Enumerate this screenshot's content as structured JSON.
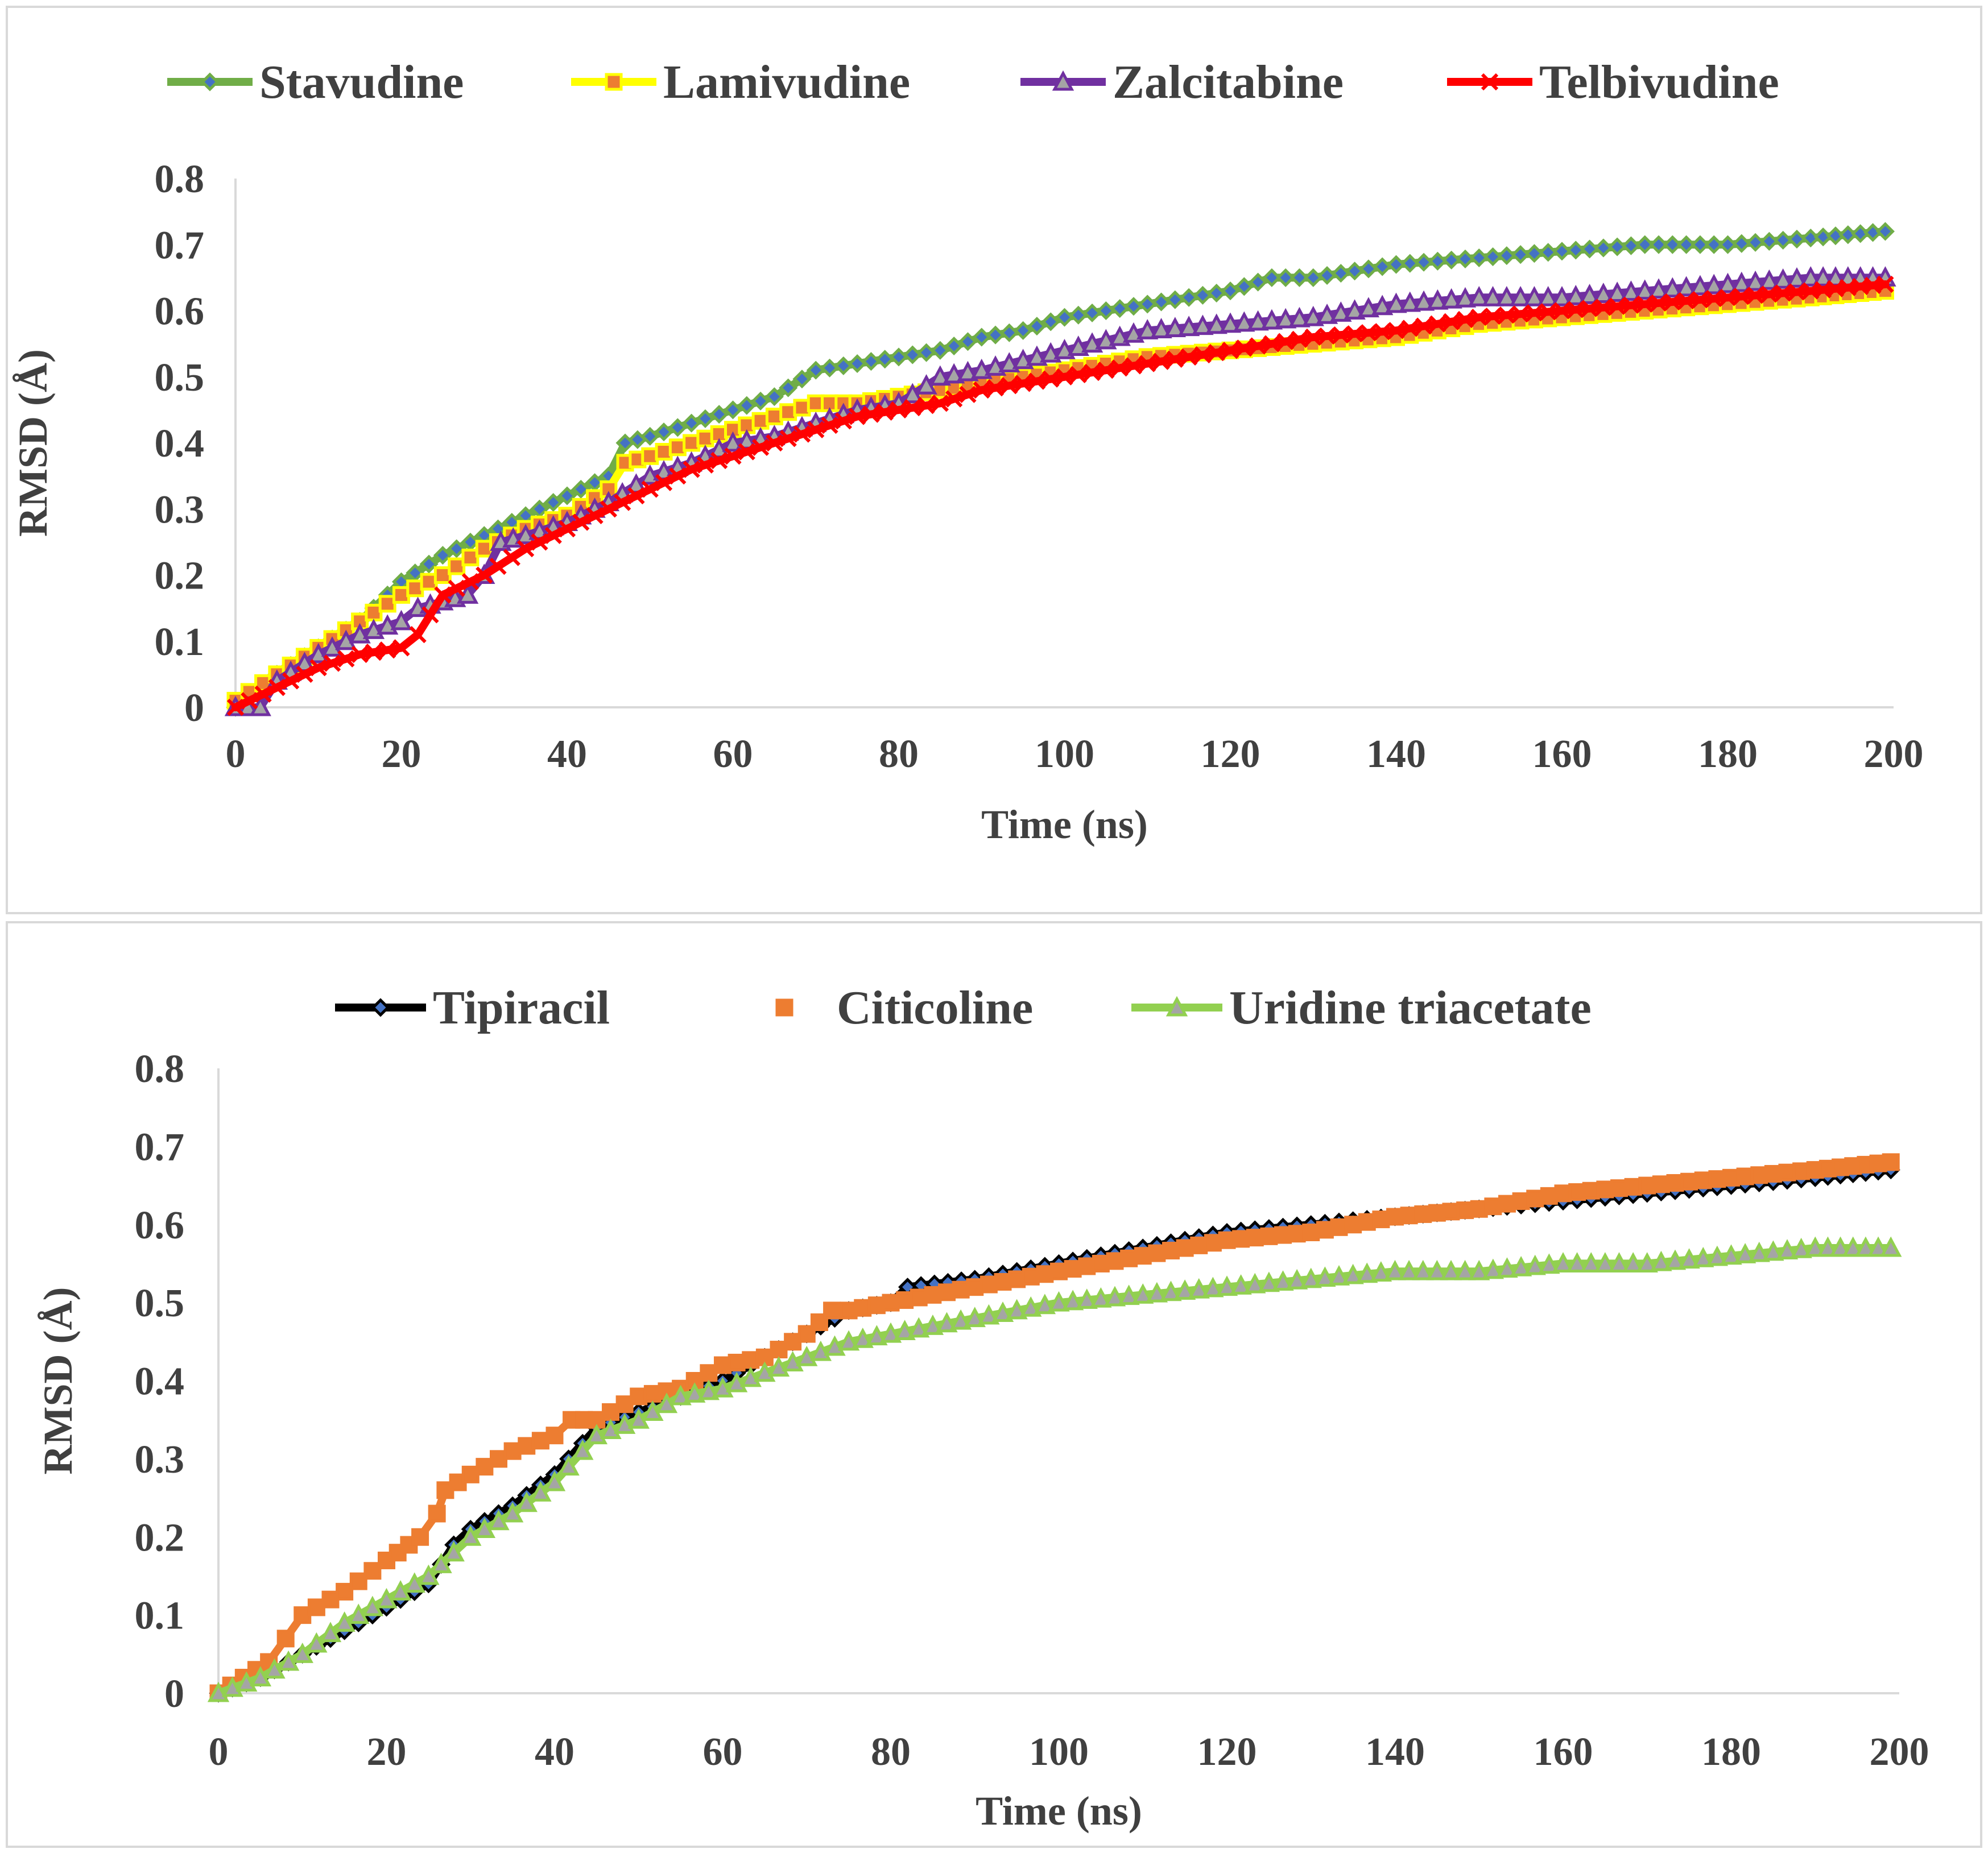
{
  "chart_data": [
    {
      "type": "line",
      "xlabel": "Time (ns)",
      "ylabel": "RMSD (Å)",
      "xlim": [
        0,
        200
      ],
      "ylim": [
        0,
        0.8
      ],
      "x_ticks": [
        "0",
        "20",
        "40",
        "60",
        "80",
        "100",
        "120",
        "140",
        "160",
        "180",
        "200"
      ],
      "y_ticks": [
        "0",
        "0.1",
        "0.2",
        "0.3",
        "0.4",
        "0.5",
        "0.6",
        "0.7",
        "0.8"
      ],
      "legend_position": "top",
      "grid": false,
      "series": [
        {
          "name": "Stavudine",
          "color": "#70ad47",
          "marker": "diamond",
          "marker_fill": "#4472c4",
          "x": [
            0,
            5,
            10,
            15,
            20,
            25,
            30,
            35,
            40,
            45,
            47,
            50,
            55,
            60,
            65,
            70,
            75,
            80,
            85,
            90,
            95,
            100,
            110,
            120,
            125,
            130,
            140,
            150,
            160,
            170,
            180,
            190,
            199
          ],
          "y": [
            0,
            0.05,
            0.09,
            0.13,
            0.19,
            0.23,
            0.26,
            0.29,
            0.32,
            0.35,
            0.4,
            0.41,
            0.43,
            0.45,
            0.47,
            0.51,
            0.52,
            0.53,
            0.54,
            0.56,
            0.57,
            0.59,
            0.61,
            0.63,
            0.65,
            0.65,
            0.67,
            0.68,
            0.69,
            0.7,
            0.7,
            0.71,
            0.72
          ]
        },
        {
          "name": "Lamivudine",
          "color": "#ffff00",
          "marker": "square",
          "marker_fill": "#ed7d31",
          "x": [
            0,
            5,
            10,
            15,
            20,
            25,
            30,
            35,
            40,
            45,
            47,
            50,
            55,
            60,
            65,
            70,
            75,
            80,
            90,
            100,
            110,
            120,
            130,
            140,
            150,
            160,
            170,
            180,
            190,
            199
          ],
          "y": [
            0.01,
            0.05,
            0.09,
            0.13,
            0.17,
            0.2,
            0.24,
            0.27,
            0.29,
            0.33,
            0.37,
            0.38,
            0.4,
            0.42,
            0.44,
            0.46,
            0.46,
            0.47,
            0.49,
            0.51,
            0.53,
            0.54,
            0.55,
            0.56,
            0.58,
            0.59,
            0.6,
            0.61,
            0.62,
            0.63
          ]
        },
        {
          "name": "Zalcitabine",
          "color": "#7030a0",
          "marker": "triangle",
          "marker_fill": "#a5a5a5",
          "x": [
            0,
            3,
            5,
            10,
            15,
            20,
            22,
            25,
            28,
            30,
            32,
            35,
            40,
            45,
            50,
            55,
            60,
            65,
            70,
            75,
            80,
            85,
            90,
            100,
            110,
            120,
            130,
            140,
            150,
            160,
            170,
            180,
            190,
            199
          ],
          "y": [
            0,
            0,
            0.04,
            0.08,
            0.11,
            0.13,
            0.15,
            0.16,
            0.17,
            0.2,
            0.25,
            0.26,
            0.28,
            0.31,
            0.35,
            0.37,
            0.4,
            0.41,
            0.43,
            0.45,
            0.46,
            0.5,
            0.51,
            0.54,
            0.57,
            0.58,
            0.59,
            0.61,
            0.62,
            0.62,
            0.63,
            0.64,
            0.65,
            0.65
          ]
        },
        {
          "name": "Telbivudine",
          "color": "#ff0000",
          "marker": "x",
          "marker_fill": "#ff0000",
          "x": [
            0,
            5,
            10,
            15,
            20,
            22,
            25,
            30,
            35,
            40,
            45,
            50,
            55,
            60,
            65,
            70,
            75,
            80,
            85,
            90,
            100,
            110,
            120,
            130,
            140,
            150,
            160,
            170,
            180,
            190,
            199
          ],
          "y": [
            0,
            0.03,
            0.06,
            0.08,
            0.09,
            0.11,
            0.17,
            0.2,
            0.24,
            0.27,
            0.3,
            0.33,
            0.36,
            0.38,
            0.4,
            0.42,
            0.44,
            0.45,
            0.46,
            0.48,
            0.5,
            0.52,
            0.54,
            0.56,
            0.57,
            0.59,
            0.6,
            0.61,
            0.62,
            0.63,
            0.64
          ]
        }
      ]
    },
    {
      "type": "line",
      "xlabel": "Time (ns)",
      "ylabel": "RMSD (Å)",
      "xlim": [
        0,
        200
      ],
      "ylim": [
        0,
        0.8
      ],
      "x_ticks": [
        "0",
        "20",
        "40",
        "60",
        "80",
        "100",
        "120",
        "140",
        "160",
        "180",
        "200"
      ],
      "y_ticks": [
        "0",
        "0.1",
        "0.2",
        "0.3",
        "0.4",
        "0.5",
        "0.6",
        "0.7",
        "0.8"
      ],
      "legend_position": "top",
      "grid": false,
      "series": [
        {
          "name": "Tipiracil",
          "color": "#000000",
          "marker": "diamond",
          "marker_fill": "#4472c4",
          "x": [
            0,
            5,
            10,
            15,
            20,
            25,
            28,
            30,
            35,
            40,
            45,
            50,
            55,
            60,
            65,
            70,
            75,
            80,
            82,
            90,
            100,
            110,
            120,
            130,
            140,
            150,
            160,
            170,
            180,
            190,
            199
          ],
          "y": [
            0,
            0.02,
            0.05,
            0.08,
            0.11,
            0.14,
            0.19,
            0.21,
            0.24,
            0.28,
            0.34,
            0.36,
            0.38,
            0.4,
            0.43,
            0.46,
            0.49,
            0.5,
            0.52,
            0.53,
            0.55,
            0.57,
            0.59,
            0.6,
            0.61,
            0.62,
            0.63,
            0.64,
            0.65,
            0.66,
            0.67
          ]
        },
        {
          "name": "Citicoline",
          "color": "#ed7d31",
          "marker": "square",
          "marker_fill": "#ed7d31",
          "x": [
            0,
            3,
            6,
            8,
            10,
            15,
            20,
            24,
            26,
            27,
            30,
            35,
            40,
            42,
            45,
            50,
            55,
            60,
            65,
            70,
            73,
            75,
            80,
            85,
            90,
            100,
            110,
            120,
            130,
            140,
            150,
            160,
            170,
            180,
            190,
            199
          ],
          "y": [
            0,
            0.02,
            0.04,
            0.07,
            0.1,
            0.13,
            0.17,
            0.2,
            0.23,
            0.26,
            0.28,
            0.31,
            0.33,
            0.35,
            0.35,
            0.38,
            0.39,
            0.42,
            0.43,
            0.46,
            0.49,
            0.49,
            0.5,
            0.51,
            0.52,
            0.54,
            0.56,
            0.58,
            0.59,
            0.61,
            0.62,
            0.64,
            0.65,
            0.66,
            0.67,
            0.68
          ]
        },
        {
          "name": "Uridine triacetate",
          "color": "#92d050",
          "marker": "triangle",
          "marker_fill": "#a5a5a5",
          "x": [
            0,
            5,
            10,
            15,
            20,
            25,
            28,
            30,
            35,
            40,
            45,
            50,
            55,
            60,
            65,
            70,
            75,
            80,
            85,
            90,
            100,
            110,
            120,
            130,
            140,
            150,
            160,
            170,
            180,
            190,
            199
          ],
          "y": [
            0,
            0.02,
            0.05,
            0.09,
            0.12,
            0.15,
            0.18,
            0.2,
            0.23,
            0.27,
            0.33,
            0.35,
            0.38,
            0.39,
            0.41,
            0.43,
            0.45,
            0.46,
            0.47,
            0.48,
            0.5,
            0.51,
            0.52,
            0.53,
            0.54,
            0.54,
            0.55,
            0.55,
            0.56,
            0.57,
            0.57
          ]
        }
      ]
    }
  ]
}
